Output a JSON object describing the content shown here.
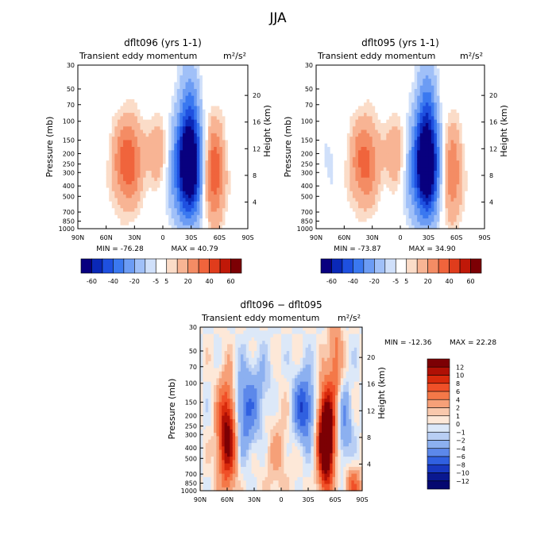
{
  "figure_title": "JJA",
  "chart_data": [
    {
      "type": "heatmap",
      "title": "dflt096 (yrs 1-1)",
      "subtitle_left": "Transient eddy momentum",
      "units": "m²/s²",
      "xlabel": "",
      "ylabel": "Pressure (mb)",
      "y2label": "Height (km)",
      "x_ticks": [
        "90N",
        "60N",
        "30N",
        "0",
        "30S",
        "60S",
        "90S"
      ],
      "x_range": [
        90,
        -90
      ],
      "y_ticks": [
        30,
        50,
        70,
        100,
        150,
        200,
        250,
        300,
        400,
        500,
        700,
        850,
        1000
      ],
      "y_range": [
        1000,
        30
      ],
      "y2_ticks": [
        4,
        8,
        12,
        16,
        20
      ],
      "min_label": "MIN = -76.28",
      "max_label": "MAX = 40.79",
      "features": [
        {
          "lat": 37,
          "p": 240,
          "value": 40,
          "lat_w": 11,
          "lp_w": 0.65
        },
        {
          "lat": 5,
          "p": 190,
          "value": 20,
          "lat_w": 7,
          "lp_w": 0.5
        },
        {
          "lat": -28,
          "p": 280,
          "value": -76,
          "lat_w": 10,
          "lp_w": 0.75
        },
        {
          "lat": -28,
          "p": 90,
          "value": -25,
          "lat_w": 8,
          "lp_w": 0.9
        },
        {
          "lat": -54,
          "p": 300,
          "value": 40,
          "lat_w": 8,
          "lp_w": 0.75
        },
        {
          "lat": -10,
          "p": 300,
          "value": -8,
          "lat_w": 8,
          "lp_w": 0.8
        },
        {
          "lat": 75,
          "p": 150,
          "value": -4,
          "lat_w": 9,
          "lp_w": 0.8
        }
      ],
      "colorbar": {
        "levels": [
          "-60",
          "-40",
          "-20",
          "-5",
          "5",
          "20",
          "40",
          "60"
        ]
      }
    },
    {
      "type": "heatmap",
      "title": "dflt095 (yrs 1-1)",
      "subtitle_left": "Transient eddy momentum",
      "units": "m²/s²",
      "xlabel": "",
      "ylabel": "Pressure (mb)",
      "y2label": "Height (km)",
      "x_ticks": [
        "90N",
        "60N",
        "30N",
        "0",
        "30S",
        "60S",
        "90S"
      ],
      "x_range": [
        90,
        -90
      ],
      "y_ticks": [
        30,
        50,
        70,
        100,
        150,
        200,
        250,
        300,
        400,
        500,
        700,
        850,
        1000
      ],
      "y_range": [
        1000,
        30
      ],
      "y2_ticks": [
        4,
        8,
        12,
        16,
        20
      ],
      "min_label": "MIN = -73.87",
      "max_label": "MAX = 34.90",
      "features": [
        {
          "lat": 38,
          "p": 240,
          "value": 35,
          "lat_w": 11,
          "lp_w": 0.65
        },
        {
          "lat": 5,
          "p": 195,
          "value": 22,
          "lat_w": 7,
          "lp_w": 0.5
        },
        {
          "lat": -28,
          "p": 280,
          "value": -74,
          "lat_w": 10,
          "lp_w": 0.75
        },
        {
          "lat": -28,
          "p": 90,
          "value": -28,
          "lat_w": 8,
          "lp_w": 0.9
        },
        {
          "lat": -55,
          "p": 300,
          "value": 30,
          "lat_w": 8,
          "lp_w": 0.75
        },
        {
          "lat": -10,
          "p": 300,
          "value": -8,
          "lat_w": 8,
          "lp_w": 0.8
        },
        {
          "lat": 75,
          "p": 250,
          "value": -6,
          "lat_w": 8,
          "lp_w": 0.6
        }
      ],
      "colorbar": {
        "levels": [
          "-60",
          "-40",
          "-20",
          "-5",
          "5",
          "20",
          "40",
          "60"
        ]
      }
    },
    {
      "type": "heatmap",
      "title": "dflt096 − dflt095",
      "subtitle_left": "Transient eddy momentum",
      "units": "m²/s²",
      "xlabel": "",
      "ylabel": "Pressure (mb)",
      "y2label": "Height (km)",
      "x_ticks": [
        "90N",
        "60N",
        "30N",
        "0",
        "30S",
        "60S",
        "90S"
      ],
      "x_range": [
        90,
        -90
      ],
      "y_ticks": [
        30,
        50,
        70,
        100,
        150,
        200,
        250,
        300,
        400,
        500,
        700,
        850,
        1000
      ],
      "y_range": [
        1000,
        30
      ],
      "y2_ticks": [
        4,
        8,
        12,
        16,
        20
      ],
      "min_label": "MIN = -12.36",
      "max_label": "MAX =   22.28",
      "features": [
        {
          "lat": 60,
          "p": 300,
          "value": 14,
          "lat_w": 7,
          "lp_w": 0.75
        },
        {
          "lat": 40,
          "p": 180,
          "value": -6,
          "lat_w": 10,
          "lp_w": 0.6
        },
        {
          "lat": -50,
          "p": 330,
          "value": 22,
          "lat_w": 6,
          "lp_w": 0.7
        },
        {
          "lat": -25,
          "p": 170,
          "value": -8,
          "lat_w": 8,
          "lp_w": 0.5
        },
        {
          "lat": -70,
          "p": 250,
          "value": -4,
          "lat_w": 6,
          "lp_w": 0.6
        },
        {
          "lat": 5,
          "p": 400,
          "value": 2,
          "lat_w": 12,
          "lp_w": 0.9
        },
        {
          "lat": 20,
          "p": 120,
          "value": -2,
          "lat_w": 10,
          "lp_w": 0.6
        },
        {
          "lat": -60,
          "p": 60,
          "value": 5,
          "lat_w": 5,
          "lp_w": 0.8
        },
        {
          "lat": -80,
          "p": 900,
          "value": 6,
          "lat_w": 6,
          "lp_w": 0.3
        }
      ],
      "colorbar": {
        "levels": [
          "12",
          "10",
          "8",
          "6",
          "4",
          "2",
          "1",
          "0",
          "−1",
          "−2",
          "−4",
          "−6",
          "−8",
          "−10",
          "−12"
        ]
      }
    }
  ],
  "colors": {
    "div_top": [
      "#08007f",
      "#0a28b8",
      "#1e50e0",
      "#3a78f0",
      "#6c9cf4",
      "#a0c0f8",
      "#d0e0fa",
      "#ffffff",
      "#fbdcc8",
      "#f8b494",
      "#f48c64",
      "#f0643c",
      "#e03c1c",
      "#c01808",
      "#7c0004"
    ],
    "div_diff": [
      "#7c0004",
      "#b01005",
      "#d82a0c",
      "#f05028",
      "#f47848",
      "#f6a078",
      "#f9c8ac",
      "#fde8d8",
      "#dce8f8",
      "#b8cef4",
      "#8cb0f0",
      "#5c88ea",
      "#3060e0",
      "#1838c0",
      "#0a1890",
      "#050870"
    ],
    "thresholds_top": [
      -60,
      -50,
      -40,
      -30,
      -20,
      -10,
      -5,
      5,
      10,
      20,
      30,
      40,
      50,
      60
    ],
    "thresholds_diff": [
      -12,
      -10,
      -8,
      -6,
      -4,
      -2,
      -1,
      0,
      1,
      2,
      4,
      6,
      8,
      10,
      12
    ]
  }
}
